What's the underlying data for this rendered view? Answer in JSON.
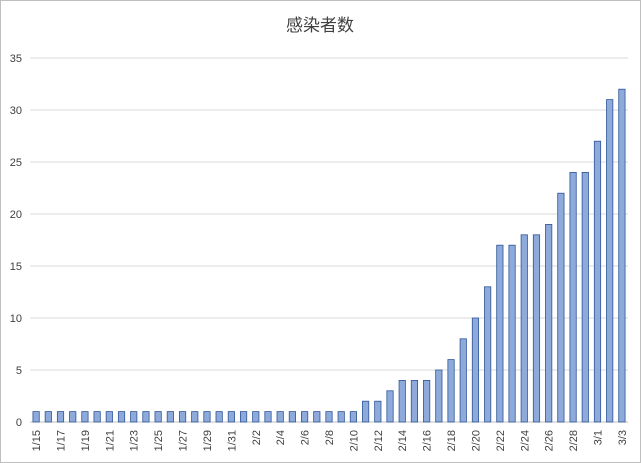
{
  "chart_data": {
    "type": "bar",
    "title": "感染者数",
    "xlabel": "",
    "ylabel": "",
    "ylim": [
      0,
      35
    ],
    "yticks": [
      0,
      5,
      10,
      15,
      20,
      25,
      30,
      35
    ],
    "grid": true,
    "legend": "none",
    "bar_color": "#8eaadb",
    "bar_edge_color": "#2f5597",
    "categories": [
      "1/15",
      "1/16",
      "1/17",
      "1/18",
      "1/19",
      "1/20",
      "1/21",
      "1/22",
      "1/23",
      "1/24",
      "1/25",
      "1/26",
      "1/27",
      "1/28",
      "1/29",
      "1/30",
      "1/31",
      "2/1",
      "2/2",
      "2/3",
      "2/4",
      "2/5",
      "2/6",
      "2/7",
      "2/8",
      "2/9",
      "2/10",
      "2/11",
      "2/12",
      "2/13",
      "2/14",
      "2/15",
      "2/16",
      "2/17",
      "2/18",
      "2/19",
      "2/20",
      "2/21",
      "2/22",
      "2/23",
      "2/24",
      "2/25",
      "2/26",
      "2/27",
      "2/28",
      "2/29",
      "3/1",
      "3/2",
      "3/3"
    ],
    "visible_tick_labels": [
      "1/15",
      "1/17",
      "1/19",
      "1/21",
      "1/23",
      "1/25",
      "1/27",
      "1/29",
      "1/31",
      "2/2",
      "2/4",
      "2/6",
      "2/8",
      "2/10",
      "2/12",
      "2/14",
      "2/16",
      "2/18",
      "2/20",
      "2/22",
      "2/24",
      "2/26",
      "2/28",
      "3/1",
      "3/3"
    ],
    "values": [
      1,
      1,
      1,
      1,
      1,
      1,
      1,
      1,
      1,
      1,
      1,
      1,
      1,
      1,
      1,
      1,
      1,
      1,
      1,
      1,
      1,
      1,
      1,
      1,
      1,
      1,
      1,
      2,
      2,
      3,
      4,
      4,
      4,
      5,
      6,
      8,
      10,
      13,
      17,
      17,
      18,
      18,
      19,
      22,
      24,
      24,
      27,
      31,
      32
    ]
  }
}
